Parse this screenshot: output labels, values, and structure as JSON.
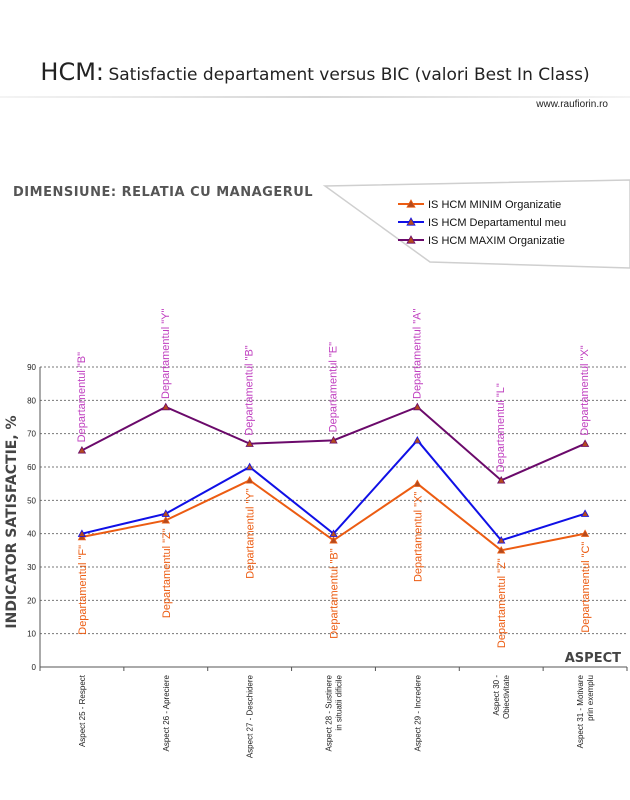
{
  "header": {
    "title_prefix": "HCM:",
    "title_rest": "Satisfactie departament versus BIC (valori Best In Class)",
    "website": "www.raufiorin.ro"
  },
  "dimension_label": "Dimensiune: Relatia cu managerul",
  "colors": {
    "min": "#ec5c12",
    "dept": "#1010e6",
    "max": "#6b0a6b",
    "label_top": "#c040c0",
    "label_bottom": "#ec5c12",
    "marker_fill": "#b34a1e",
    "grid": "#777777"
  },
  "chart_data": {
    "type": "line",
    "ylabel": "Indicator satisfactie, %",
    "xlabel": "Aspect",
    "ylim": [
      0,
      90
    ],
    "yticks": [
      "0",
      "10",
      "20",
      "30",
      "40",
      "50",
      "60",
      "70",
      "80",
      "90"
    ],
    "grid": true,
    "legend_placement": "top-right",
    "categories": [
      "Aspect 25 - Respect",
      "Aspect 26 - Apreciere",
      "Aspect 27 - Deschidere",
      "Aspect 28 - Sustinere in situatii dificile",
      "Aspect 29 - Incredere",
      "Aspect 30 - Obiectivitate",
      "Aspect 31 - Motivare prin exemplu"
    ],
    "series": [
      {
        "name": "IS HCM MINIM Organizatie",
        "color_key": "min",
        "values": [
          39,
          44,
          56,
          38,
          55,
          35,
          40
        ]
      },
      {
        "name": "IS HCM Departamentul meu",
        "color_key": "dept",
        "values": [
          40,
          46,
          60,
          40,
          68,
          38,
          46
        ]
      },
      {
        "name": "IS HCM MAXIM Organizatie",
        "color_key": "max",
        "values": [
          65,
          78,
          67,
          68,
          78,
          56,
          67
        ]
      }
    ],
    "max_department_labels": [
      "Departamentul \"B\"",
      "Departamentul \"Y\"",
      "Departamentul \"B\"",
      "Departamentul \"E\"",
      "Departamentul \"A\"",
      "Departamentul \"L\"",
      "Departamentul \"X\""
    ],
    "min_department_labels": [
      "Departamentul \"F\"",
      "Departamentul \"Z\"",
      "Departamentul \"Y\"",
      "Departamentul \"B\"",
      "Departamentul \"X\"",
      "Departamentul \"Z\"",
      "Departamentul \"C\""
    ]
  }
}
